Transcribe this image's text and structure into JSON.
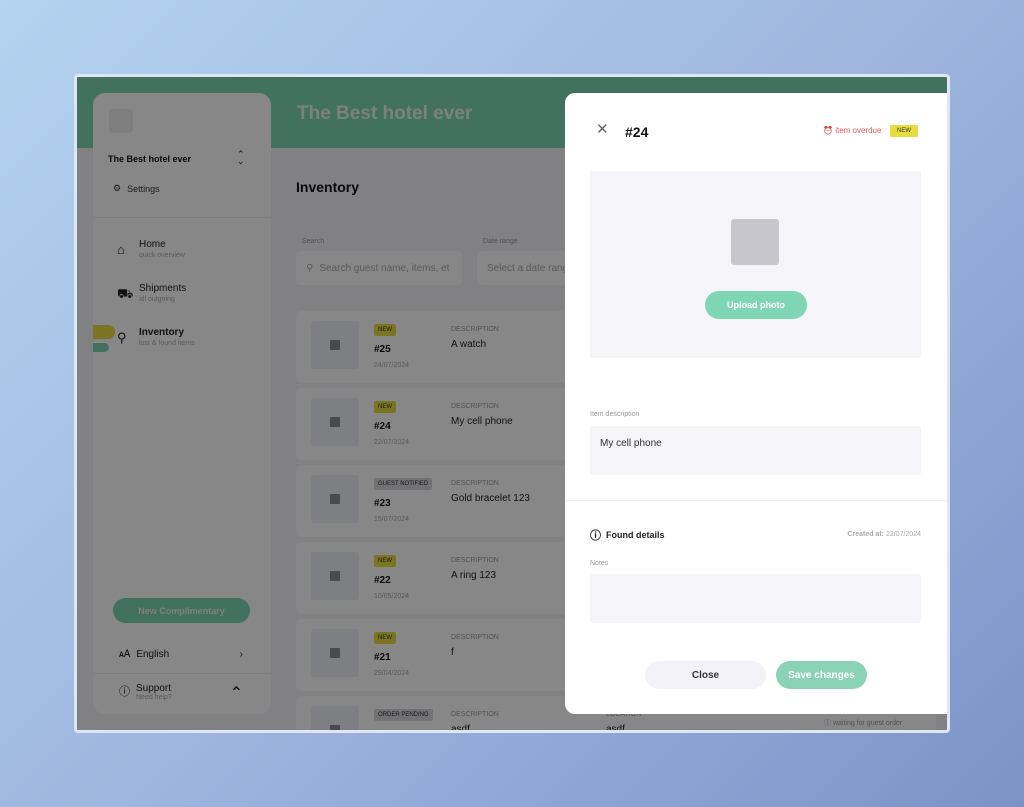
{
  "app": {
    "title": "The Best hotel ever"
  },
  "sidebar": {
    "hotel": "The Best hotel ever",
    "settings": "Settings",
    "items": [
      {
        "label": "Home",
        "sub": "quick overview"
      },
      {
        "label": "Shipments",
        "sub": "all outgoing"
      },
      {
        "label": "Inventory",
        "sub": "lost & found items"
      }
    ],
    "new_button": "New Complimentary",
    "language": "English",
    "support": "Support",
    "support_sub": "Need help?"
  },
  "main": {
    "title": "Inventory",
    "search_label": "Search",
    "search_placeholder": "Search guest name, items, et",
    "date_label": "Date range",
    "date_placeholder": "Select a date range",
    "desc_label": "DESCRIPTION",
    "location_label": "LOCATION",
    "rows": [
      {
        "badge": "NEW",
        "id": "#25",
        "date": "24/07/2024",
        "desc": "A watch"
      },
      {
        "badge": "NEW",
        "id": "#24",
        "date": "22/07/2024",
        "desc": "My cell phone"
      },
      {
        "badge": "GUEST NOTIFIED",
        "id": "#23",
        "date": "15/07/2024",
        "desc": "Gold bracelet 123"
      },
      {
        "badge": "NEW",
        "id": "#22",
        "date": "10/05/2024",
        "desc": "A ring 123"
      },
      {
        "badge": "NEW",
        "id": "#21",
        "date": "29/04/2024",
        "desc": "f"
      },
      {
        "badge": "ORDER PENDING",
        "id": "",
        "date": "",
        "desc": "asdf",
        "location": "asdf",
        "status": "waiting for guest order"
      }
    ]
  },
  "modal": {
    "title": "#24",
    "overdue": "item overdue",
    "badge": "NEW",
    "upload": "Upload photo",
    "desc_label": "Item description",
    "desc_value": "My cell phone",
    "found": "Found details",
    "created_label": "Created at:",
    "created_value": "22/07/2024",
    "notes_label": "Notes",
    "notes_value": "",
    "close": "Close",
    "save": "Save changes"
  },
  "colors": {
    "accent": "#7ed6b4",
    "new_badge": "#e9dc3f",
    "overdue": "#e05a5a"
  }
}
